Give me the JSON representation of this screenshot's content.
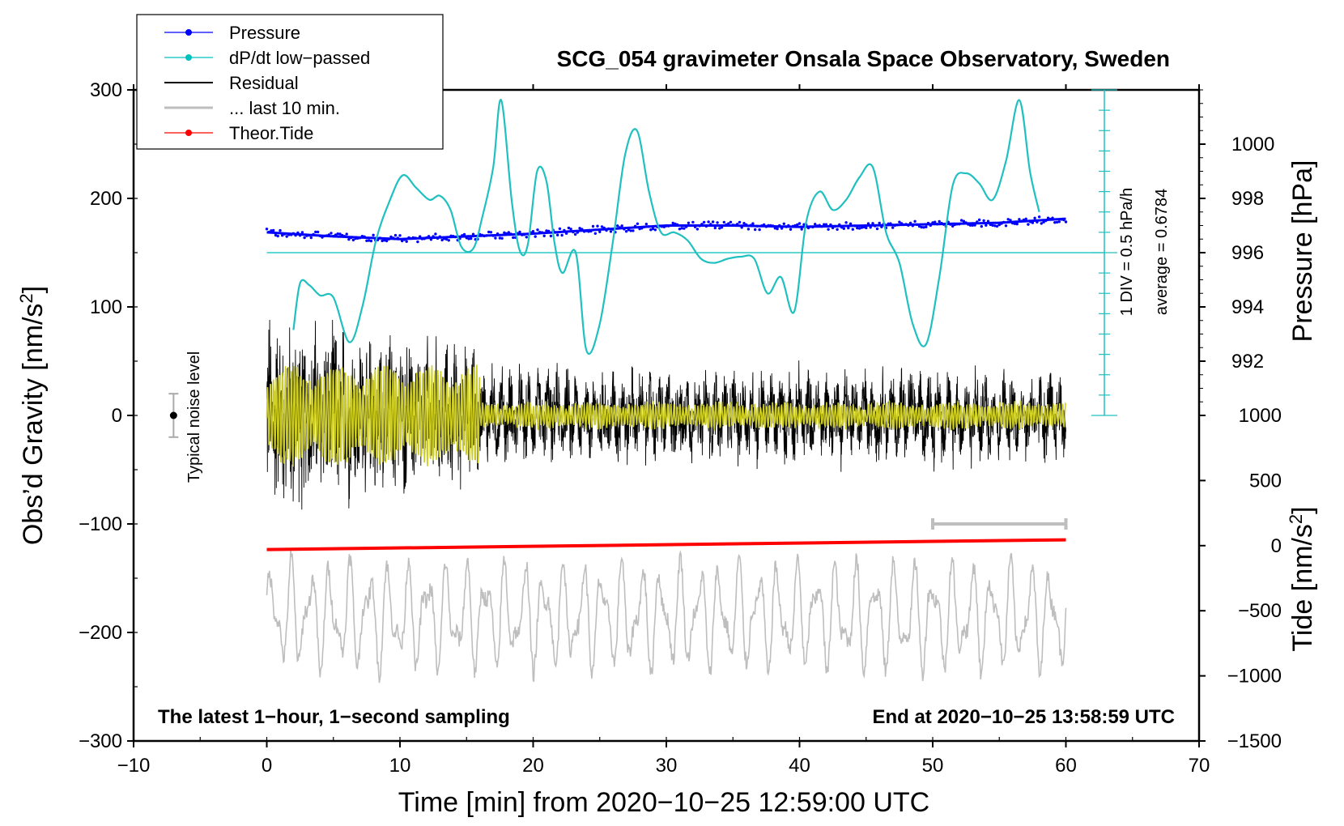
{
  "chart_data": {
    "type": "line",
    "title": "SCG_054 gravimeter Onsala Space Observatory, Sweden",
    "xlabel": "Time [min] from 2020−10−25 12:59:00 UTC",
    "ylabel_left": "Obs’d Gravity [nm/s",
    "ylabel_sup": "2",
    "ylabel_close": "]",
    "ylabel_pressure": "Pressure [hPa]",
    "ylabel_tide": "Tide [nm/s",
    "xlim": [
      -10,
      70
    ],
    "ylim": [
      -300,
      300
    ],
    "x_ticks": [
      "−10",
      "0",
      "10",
      "20",
      "30",
      "40",
      "50",
      "60",
      "70"
    ],
    "x_tick_values": [
      -10,
      0,
      10,
      20,
      30,
      40,
      50,
      60,
      70
    ],
    "y_ticks": [
      "300",
      "200",
      "100",
      "0",
      "−100",
      "−200",
      "−300"
    ],
    "y_tick_values": [
      300,
      200,
      100,
      0,
      -100,
      -200,
      -300
    ],
    "pressure_axis": {
      "ticks": [
        "1000",
        "998",
        "996",
        "994",
        "992"
      ],
      "tick_values": [
        1000,
        998,
        996,
        994,
        992
      ],
      "range": [
        990,
        1002
      ]
    },
    "tide_axis": {
      "ticks": [
        "1000",
        "500",
        "0",
        "−500",
        "−1000",
        "−1500"
      ],
      "tick_values": [
        1000,
        500,
        0,
        -500,
        -1000,
        -1500
      ],
      "range": [
        -1500,
        1000
      ]
    },
    "legend": [
      {
        "label": "Pressure",
        "color": "#0000ff",
        "marker": true
      },
      {
        "label": "dP/dt low−passed",
        "color": "#00c0c0",
        "marker": true
      },
      {
        "label": "Residual",
        "color": "#000000",
        "marker": false
      },
      {
        "label": "... last 10 min.",
        "color": "#bebebe",
        "marker": false
      },
      {
        "label": "Theor.Tide",
        "color": "#ff0000",
        "marker": true
      }
    ],
    "series": [
      {
        "name": "Pressure",
        "color": "#0000ff",
        "axis": "pressure",
        "x": [
          0,
          5,
          10,
          15,
          20,
          25,
          30,
          35,
          40,
          45,
          50,
          55,
          60
        ],
        "values": [
          996.75,
          996.6,
          996.5,
          996.6,
          996.7,
          996.85,
          997.0,
          997.0,
          996.95,
          997.0,
          997.05,
          997.1,
          997.25
        ]
      },
      {
        "name": "dP/dt low-passed",
        "color": "#00c0c0",
        "axis": "dpdt",
        "baseline_pressure": 996,
        "x": [
          2,
          2.5,
          3.2,
          4,
          5,
          6.2,
          7.2,
          8.2,
          9.2,
          10.2,
          11.2,
          12.2,
          13,
          13.8,
          14.6,
          15.5,
          16.2,
          17,
          17.6,
          18.4,
          19,
          19.6,
          20.3,
          21,
          21.6,
          22.2,
          23.2,
          24,
          25,
          26,
          26.9,
          27.8,
          28.7,
          29.6,
          30.6,
          31.6,
          32.6,
          33.6,
          34.6,
          35.6,
          36.6,
          37.6,
          38.6,
          39.6,
          40.5,
          41.5,
          42.5,
          43.5,
          44.5,
          45.5,
          46.5,
          47.5,
          48.5,
          49.5,
          50.5,
          51.5,
          52.5,
          53.5,
          54.5,
          55.5,
          56.5,
          57.3,
          58
        ],
        "values": [
          -3.8,
          -1.5,
          -1.6,
          -2.1,
          -2.2,
          -4.4,
          -2.6,
          0.6,
          2.5,
          3.8,
          3.2,
          2.6,
          2.8,
          2.1,
          0.3,
          0.2,
          1.8,
          4.2,
          7.5,
          2.5,
          0.1,
          0.4,
          4.0,
          3.5,
          0.5,
          -1.0,
          0.0,
          -4.8,
          -3.5,
          0.6,
          4.8,
          6.0,
          3.0,
          1.0,
          1.0,
          0.6,
          -0.3,
          -0.5,
          -0.3,
          -0.2,
          -0.3,
          -2.0,
          -1.2,
          -2.9,
          1.5,
          3.0,
          2.1,
          2.6,
          3.7,
          4.2,
          1.0,
          -0.5,
          -3.5,
          -4.5,
          -1.2,
          3.3,
          3.9,
          3.4,
          2.6,
          4.5,
          7.5,
          4.0,
          2.0
        ]
      },
      {
        "name": "Residual",
        "color": "#000000",
        "axis": "gravity",
        "x_range": [
          0,
          60
        ],
        "envelope": "approx ±130 early, ±40 late"
      },
      {
        "name": "Filtered residual",
        "color": "#cccc22",
        "axis": "gravity",
        "x_range": [
          0,
          60
        ],
        "envelope": "approx ±55 early, ±10 late"
      },
      {
        "name": "... last 10 min.",
        "color": "#bebebe",
        "axis": "gravity",
        "x_range": [
          0,
          60
        ],
        "center": -185,
        "amplitude": 60
      },
      {
        "name": "Theor.Tide",
        "color": "#ff0000",
        "axis": "tide",
        "x": [
          0,
          60
        ],
        "values": [
          -30,
          45
        ]
      }
    ],
    "annotations": {
      "noise_label": "Typical noise level",
      "noise_bar": {
        "x": -7,
        "center": 0,
        "half_height": 20
      },
      "dpdt_scale_line1": "1 DIV = 0.5 hPa/h",
      "dpdt_scale_line2": "average = 0.6784",
      "ten_min_bar": {
        "x": [
          50,
          60
        ],
        "y": -100
      },
      "bottom_left": "The latest 1−hour, 1−second sampling",
      "bottom_right": "End at 2020−10−25 13:58:59 UTC"
    }
  }
}
